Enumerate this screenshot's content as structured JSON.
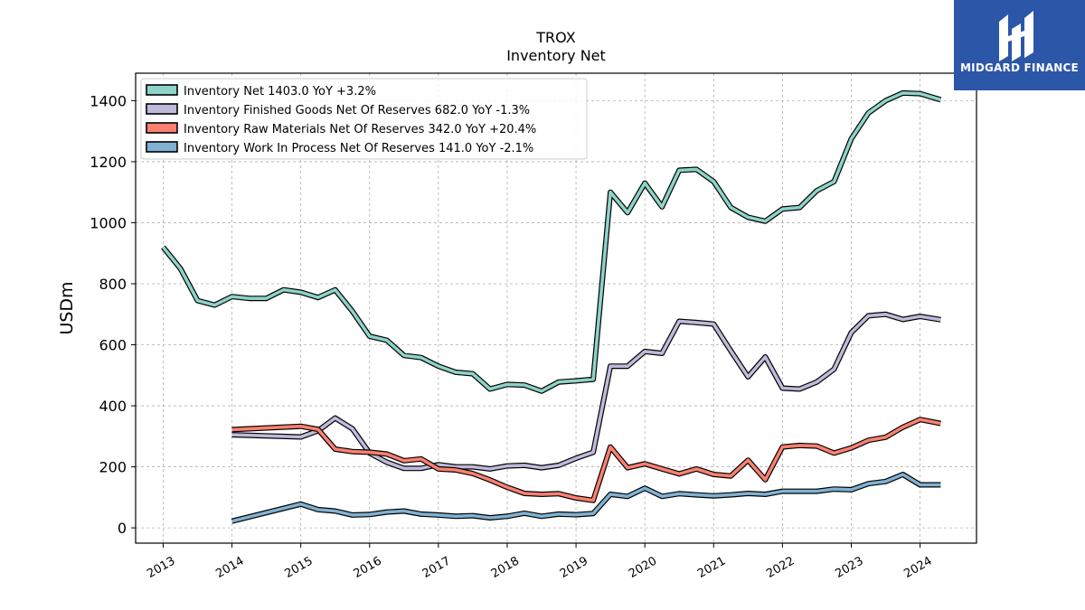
{
  "title_line1": "TROX",
  "title_line2": "Inventory Net",
  "logo_text": "MIDGARD FINANCE",
  "chart_data": {
    "type": "line",
    "title": "TROX Inventory Net",
    "ylabel": "USDm",
    "xlabel": "",
    "ylim": [
      -50,
      1490
    ],
    "xlim": [
      2012.6,
      2024.82
    ],
    "x_ticks": [
      2013,
      2014,
      2015,
      2016,
      2017,
      2018,
      2019,
      2020,
      2021,
      2022,
      2023,
      2024
    ],
    "x_tick_labels": [
      "2013",
      "2014",
      "2015",
      "2016",
      "2017",
      "2018",
      "2019",
      "2020",
      "2021",
      "2022",
      "2023",
      "2024"
    ],
    "y_ticks": [
      0,
      200,
      400,
      600,
      800,
      1000,
      1200,
      1400
    ],
    "y_tick_labels": [
      "0",
      "200",
      "400",
      "600",
      "800",
      "1000",
      "1200",
      "1400"
    ],
    "grid": true,
    "legend_position": "top-left",
    "series": [
      {
        "name": "Inventory Net  1403.0 YoY +3.2%",
        "color": "#8dd3c7",
        "points": [
          [
            2013.0,
            920
          ],
          [
            2013.25,
            850
          ],
          [
            2013.5,
            745
          ],
          [
            2013.75,
            730
          ],
          [
            2014.0,
            758
          ],
          [
            2014.25,
            752
          ],
          [
            2014.5,
            752
          ],
          [
            2014.75,
            780
          ],
          [
            2015.0,
            772
          ],
          [
            2015.25,
            755
          ],
          [
            2015.5,
            780
          ],
          [
            2015.75,
            710
          ],
          [
            2016.0,
            628
          ],
          [
            2016.25,
            615
          ],
          [
            2016.5,
            565
          ],
          [
            2016.75,
            558
          ],
          [
            2017.0,
            530
          ],
          [
            2017.25,
            510
          ],
          [
            2017.5,
            505
          ],
          [
            2017.75,
            455
          ],
          [
            2018.0,
            470
          ],
          [
            2018.25,
            468
          ],
          [
            2018.5,
            448
          ],
          [
            2018.75,
            478
          ],
          [
            2019.0,
            482
          ],
          [
            2019.25,
            487
          ],
          [
            2019.5,
            1100
          ],
          [
            2019.75,
            1033
          ],
          [
            2020.0,
            1130
          ],
          [
            2020.25,
            1052
          ],
          [
            2020.5,
            1172
          ],
          [
            2020.75,
            1175
          ],
          [
            2021.0,
            1135
          ],
          [
            2021.25,
            1050
          ],
          [
            2021.5,
            1018
          ],
          [
            2021.75,
            1005
          ],
          [
            2022.0,
            1045
          ],
          [
            2022.25,
            1050
          ],
          [
            2022.5,
            1105
          ],
          [
            2022.75,
            1135
          ],
          [
            2023.0,
            1275
          ],
          [
            2023.25,
            1360
          ],
          [
            2023.5,
            1400
          ],
          [
            2023.75,
            1425
          ],
          [
            2024.0,
            1423
          ],
          [
            2024.3,
            1403
          ]
        ]
      },
      {
        "name": "Inventory Finished Goods Net Of Reserves  682.0 YoY -1.3%",
        "color": "#bebada",
        "points": [
          [
            2014.0,
            305
          ],
          [
            2015.0,
            298
          ],
          [
            2015.25,
            318
          ],
          [
            2015.5,
            360
          ],
          [
            2015.75,
            325
          ],
          [
            2016.0,
            245
          ],
          [
            2016.25,
            215
          ],
          [
            2016.5,
            195
          ],
          [
            2016.75,
            195
          ],
          [
            2017.0,
            207
          ],
          [
            2017.25,
            200
          ],
          [
            2017.5,
            200
          ],
          [
            2017.75,
            193
          ],
          [
            2018.0,
            203
          ],
          [
            2018.25,
            205
          ],
          [
            2018.5,
            197
          ],
          [
            2018.75,
            205
          ],
          [
            2019.0,
            228
          ],
          [
            2019.25,
            248
          ],
          [
            2019.5,
            530
          ],
          [
            2019.75,
            530
          ],
          [
            2020.0,
            578
          ],
          [
            2020.25,
            572
          ],
          [
            2020.5,
            677
          ],
          [
            2020.75,
            673
          ],
          [
            2021.0,
            668
          ],
          [
            2021.25,
            580
          ],
          [
            2021.5,
            495
          ],
          [
            2021.75,
            560
          ],
          [
            2022.0,
            458
          ],
          [
            2022.25,
            455
          ],
          [
            2022.5,
            478
          ],
          [
            2022.75,
            520
          ],
          [
            2023.0,
            640
          ],
          [
            2023.25,
            695
          ],
          [
            2023.5,
            700
          ],
          [
            2023.75,
            683
          ],
          [
            2024.0,
            693
          ],
          [
            2024.3,
            682
          ]
        ]
      },
      {
        "name": "Inventory Raw Materials Net Of Reserves  342.0 YoY +20.4%",
        "color": "#fb8072",
        "points": [
          [
            2014.0,
            322
          ],
          [
            2015.0,
            333
          ],
          [
            2015.25,
            323
          ],
          [
            2015.5,
            258
          ],
          [
            2015.75,
            250
          ],
          [
            2016.0,
            248
          ],
          [
            2016.25,
            242
          ],
          [
            2016.5,
            220
          ],
          [
            2016.75,
            226
          ],
          [
            2017.0,
            193
          ],
          [
            2017.25,
            190
          ],
          [
            2017.5,
            178
          ],
          [
            2017.75,
            157
          ],
          [
            2018.0,
            133
          ],
          [
            2018.25,
            113
          ],
          [
            2018.5,
            110
          ],
          [
            2018.75,
            112
          ],
          [
            2019.0,
            98
          ],
          [
            2019.25,
            90
          ],
          [
            2019.5,
            265
          ],
          [
            2019.75,
            197
          ],
          [
            2020.0,
            210
          ],
          [
            2020.25,
            193
          ],
          [
            2020.5,
            177
          ],
          [
            2020.75,
            193
          ],
          [
            2021.0,
            175
          ],
          [
            2021.25,
            170
          ],
          [
            2021.5,
            222
          ],
          [
            2021.75,
            158
          ],
          [
            2022.0,
            265
          ],
          [
            2022.25,
            270
          ],
          [
            2022.5,
            268
          ],
          [
            2022.75,
            245
          ],
          [
            2023.0,
            262
          ],
          [
            2023.25,
            287
          ],
          [
            2023.5,
            297
          ],
          [
            2023.75,
            330
          ],
          [
            2024.0,
            355
          ],
          [
            2024.3,
            342
          ]
        ]
      },
      {
        "name": "Inventory Work In Process Net Of Reserves  141.0 YoY -2.1%",
        "color": "#80b1d3",
        "points": [
          [
            2014.0,
            22
          ],
          [
            2015.0,
            78
          ],
          [
            2015.25,
            60
          ],
          [
            2015.5,
            55
          ],
          [
            2015.75,
            42
          ],
          [
            2016.0,
            44
          ],
          [
            2016.25,
            52
          ],
          [
            2016.5,
            55
          ],
          [
            2016.75,
            45
          ],
          [
            2017.0,
            42
          ],
          [
            2017.25,
            38
          ],
          [
            2017.5,
            40
          ],
          [
            2017.75,
            33
          ],
          [
            2018.0,
            38
          ],
          [
            2018.25,
            48
          ],
          [
            2018.5,
            38
          ],
          [
            2018.75,
            45
          ],
          [
            2019.0,
            43
          ],
          [
            2019.25,
            47
          ],
          [
            2019.5,
            110
          ],
          [
            2019.75,
            103
          ],
          [
            2020.0,
            130
          ],
          [
            2020.25,
            103
          ],
          [
            2020.5,
            112
          ],
          [
            2020.75,
            108
          ],
          [
            2021.0,
            105
          ],
          [
            2021.25,
            108
          ],
          [
            2021.5,
            113
          ],
          [
            2021.75,
            110
          ],
          [
            2022.0,
            120
          ],
          [
            2022.25,
            120
          ],
          [
            2022.5,
            120
          ],
          [
            2022.75,
            127
          ],
          [
            2023.0,
            125
          ],
          [
            2023.25,
            145
          ],
          [
            2023.5,
            152
          ],
          [
            2023.75,
            175
          ],
          [
            2024.0,
            141
          ],
          [
            2024.3,
            141
          ]
        ]
      }
    ]
  }
}
